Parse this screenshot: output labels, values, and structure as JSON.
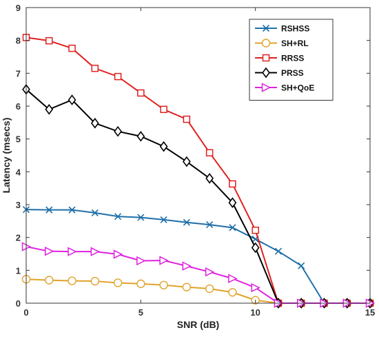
{
  "chart_data": {
    "type": "line",
    "xlabel": "SNR (dB)",
    "ylabel": "Latency (msecs)",
    "xlim": [
      0,
      15
    ],
    "ylim": [
      0,
      9
    ],
    "x_ticks": [
      "0",
      "5",
      "10",
      "15"
    ],
    "y_ticks": [
      "0",
      "1",
      "2",
      "3",
      "4",
      "5",
      "6",
      "7",
      "8",
      "9"
    ],
    "grid": false,
    "legend_position": "top-right",
    "series": [
      {
        "name": "RSHSS",
        "color": "#1f6fa8",
        "marker": "x",
        "x": [
          0,
          1,
          2,
          3,
          4,
          5,
          6,
          7,
          8,
          9,
          10,
          11,
          12,
          13,
          14,
          15
        ],
        "values": [
          2.85,
          2.84,
          2.84,
          2.75,
          2.64,
          2.61,
          2.54,
          2.46,
          2.39,
          2.3,
          1.95,
          1.58,
          1.14,
          0,
          0,
          0
        ]
      },
      {
        "name": "SH+RL",
        "color": "#e0a32b",
        "marker": "circle",
        "x": [
          0,
          1,
          2,
          3,
          4,
          5,
          6,
          7,
          8,
          9,
          10,
          11,
          12,
          13,
          14,
          15
        ],
        "values": [
          0.73,
          0.7,
          0.68,
          0.67,
          0.62,
          0.59,
          0.55,
          0.49,
          0.44,
          0.33,
          0.09,
          0,
          0,
          0,
          0,
          0
        ]
      },
      {
        "name": "RRSS",
        "color": "#e02020",
        "marker": "square",
        "x": [
          0,
          1,
          2,
          3,
          4,
          5,
          6,
          7,
          8,
          9,
          10,
          11,
          12,
          13,
          14,
          15
        ],
        "values": [
          8.09,
          7.99,
          7.76,
          7.15,
          6.9,
          6.4,
          5.9,
          5.6,
          4.58,
          3.63,
          2.22,
          0,
          0,
          0,
          0,
          0
        ]
      },
      {
        "name": "PRSS",
        "color": "#000000",
        "marker": "diamond",
        "x": [
          0,
          1,
          2,
          3,
          4,
          5,
          6,
          7,
          8,
          9,
          10,
          11,
          12,
          13,
          14,
          15
        ],
        "values": [
          6.51,
          5.9,
          6.19,
          5.48,
          5.23,
          5.08,
          4.77,
          4.31,
          3.8,
          3.06,
          1.69,
          0,
          0,
          0,
          0,
          0
        ]
      },
      {
        "name": "SH+QoE",
        "color": "#e020e0",
        "marker": "triangle-right",
        "x": [
          0,
          1,
          2,
          3,
          4,
          5,
          6,
          7,
          8,
          9,
          10,
          11,
          12,
          13,
          14,
          15
        ],
        "values": [
          1.72,
          1.58,
          1.57,
          1.57,
          1.49,
          1.29,
          1.3,
          1.13,
          0.95,
          0.75,
          0.47,
          0,
          0,
          0,
          0,
          0
        ]
      }
    ]
  }
}
